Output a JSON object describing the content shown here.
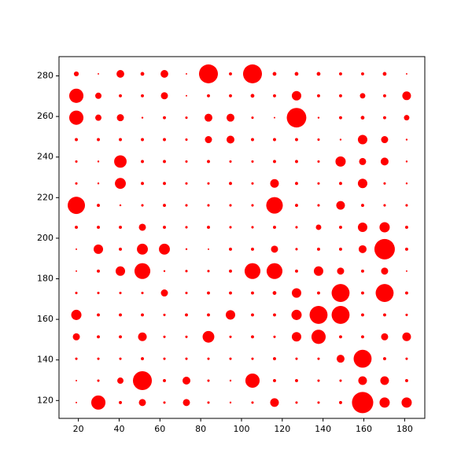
{
  "chart_data": {
    "type": "scatter",
    "color": "#ff0000",
    "x": [
      19,
      29.8,
      40.6,
      51.4,
      62.2,
      73,
      83.8,
      94.6,
      105.4,
      116.2,
      127,
      137.8,
      148.6,
      159.4,
      170.2,
      181
    ],
    "y": [
      281,
      270.2,
      259.4,
      248.6,
      237.8,
      227,
      216.2,
      205.4,
      194.6,
      183.8,
      173,
      162.2,
      151.4,
      140.6,
      129.8,
      119
    ],
    "sizes": [
      [
        20,
        2,
        50,
        12,
        50,
        2,
        300,
        8,
        300,
        12,
        12,
        12,
        8,
        8,
        12,
        2
      ],
      [
        170,
        33,
        8,
        8,
        42,
        2,
        8,
        8,
        12,
        8,
        75,
        8,
        8,
        25,
        8,
        63
      ],
      [
        170,
        33,
        42,
        3,
        8,
        5,
        52,
        52,
        5,
        2,
        320,
        3,
        8,
        12,
        8,
        25
      ],
      [
        8,
        8,
        8,
        8,
        8,
        5,
        42,
        52,
        8,
        8,
        8,
        5,
        3,
        75,
        42,
        3
      ],
      [
        5,
        3,
        130,
        8,
        8,
        5,
        8,
        5,
        5,
        8,
        8,
        5,
        88,
        42,
        52,
        3
      ],
      [
        5,
        3,
        100,
        8,
        8,
        5,
        5,
        8,
        5,
        63,
        8,
        5,
        8,
        75,
        5,
        3
      ],
      [
        250,
        8,
        3,
        5,
        8,
        5,
        5,
        5,
        5,
        230,
        8,
        5,
        63,
        8,
        5,
        5
      ],
      [
        8,
        8,
        8,
        42,
        8,
        5,
        8,
        5,
        5,
        8,
        5,
        25,
        8,
        75,
        88,
        8
      ],
      [
        2,
        75,
        8,
        100,
        100,
        3,
        2,
        8,
        8,
        42,
        5,
        8,
        8,
        52,
        350,
        8
      ],
      [
        2,
        8,
        75,
        210,
        3,
        5,
        5,
        8,
        210,
        210,
        8,
        75,
        42,
        8,
        42,
        2
      ],
      [
        5,
        5,
        5,
        5,
        42,
        5,
        8,
        8,
        8,
        12,
        75,
        8,
        270,
        8,
        270,
        8
      ],
      [
        88,
        8,
        8,
        8,
        5,
        8,
        8,
        75,
        8,
        8,
        88,
        270,
        270,
        8,
        8,
        5
      ],
      [
        42,
        8,
        8,
        63,
        5,
        5,
        115,
        5,
        8,
        5,
        75,
        170,
        8,
        8,
        42,
        63
      ],
      [
        5,
        5,
        5,
        8,
        5,
        5,
        5,
        5,
        5,
        8,
        5,
        5,
        52,
        270,
        8,
        5
      ],
      [
        2,
        5,
        33,
        300,
        8,
        52,
        5,
        3,
        170,
        8,
        8,
        5,
        5,
        63,
        63,
        8
      ],
      [
        2,
        170,
        8,
        42,
        5,
        42,
        5,
        3,
        5,
        63,
        5,
        5,
        8,
        380,
        88,
        88
      ]
    ],
    "xlim": [
      10.5,
      189.9
    ],
    "ylim": [
      111.2,
      289.5
    ],
    "xticks": [
      20,
      40,
      60,
      80,
      100,
      120,
      140,
      160,
      180
    ],
    "yticks": [
      120,
      140,
      160,
      180,
      200,
      220,
      240,
      260,
      280
    ]
  }
}
